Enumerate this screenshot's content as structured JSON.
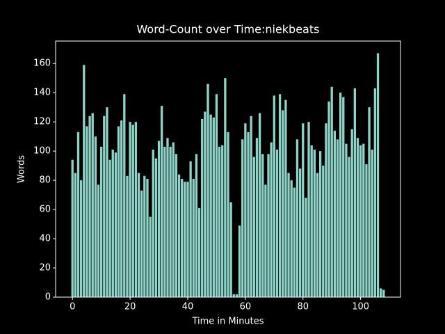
{
  "chart_data": {
    "type": "bar",
    "title": "Word-Count over Time:niekbeats",
    "xlabel": "Time in Minutes",
    "ylabel": "Words",
    "x": [
      0,
      1,
      2,
      3,
      4,
      5,
      6,
      7,
      8,
      9,
      10,
      11,
      12,
      13,
      14,
      15,
      16,
      17,
      18,
      19,
      20,
      21,
      22,
      23,
      24,
      25,
      26,
      27,
      28,
      29,
      30,
      31,
      32,
      33,
      34,
      35,
      36,
      37,
      38,
      39,
      40,
      41,
      42,
      43,
      44,
      45,
      46,
      47,
      48,
      49,
      50,
      51,
      52,
      53,
      54,
      55,
      56,
      57,
      58,
      59,
      60,
      61,
      62,
      63,
      64,
      65,
      66,
      67,
      68,
      69,
      70,
      71,
      72,
      73,
      74,
      75,
      76,
      77,
      78,
      79,
      80,
      81,
      82,
      83,
      84,
      85,
      86,
      87,
      88,
      89,
      90,
      91,
      92,
      93,
      94,
      95,
      96,
      97,
      98,
      99,
      100,
      101,
      102,
      103,
      104,
      105,
      106,
      107,
      108
    ],
    "values": [
      94,
      85,
      113,
      80,
      159,
      117,
      124,
      126,
      110,
      77,
      103,
      124,
      130,
      94,
      101,
      99,
      117,
      121,
      139,
      83,
      120,
      118,
      120,
      85,
      73,
      83,
      81,
      55,
      101,
      95,
      107,
      131,
      103,
      109,
      103,
      106,
      98,
      84,
      81,
      79,
      79,
      93,
      81,
      98,
      61,
      122,
      127,
      146,
      125,
      123,
      139,
      103,
      104,
      150,
      113,
      65,
      2,
      2,
      49,
      108,
      119,
      113,
      124,
      96,
      109,
      126,
      98,
      77,
      98,
      106,
      138,
      101,
      139,
      128,
      135,
      85,
      80,
      75,
      108,
      88,
      119,
      68,
      120,
      104,
      101,
      85,
      100,
      90,
      119,
      134,
      144,
      114,
      108,
      140,
      137,
      105,
      96,
      115,
      143,
      109,
      104,
      105,
      91,
      130,
      101,
      143,
      167,
      6,
      5
    ],
    "color": "#8dd3c7",
    "xlim": [
      -5.84,
      113.84
    ],
    "xticks": [
      0,
      20,
      40,
      60,
      80,
      100
    ],
    "ylim": [
      0,
      175.35
    ],
    "yticks": [
      0,
      20,
      40,
      60,
      80,
      100,
      120,
      140,
      160
    ]
  }
}
